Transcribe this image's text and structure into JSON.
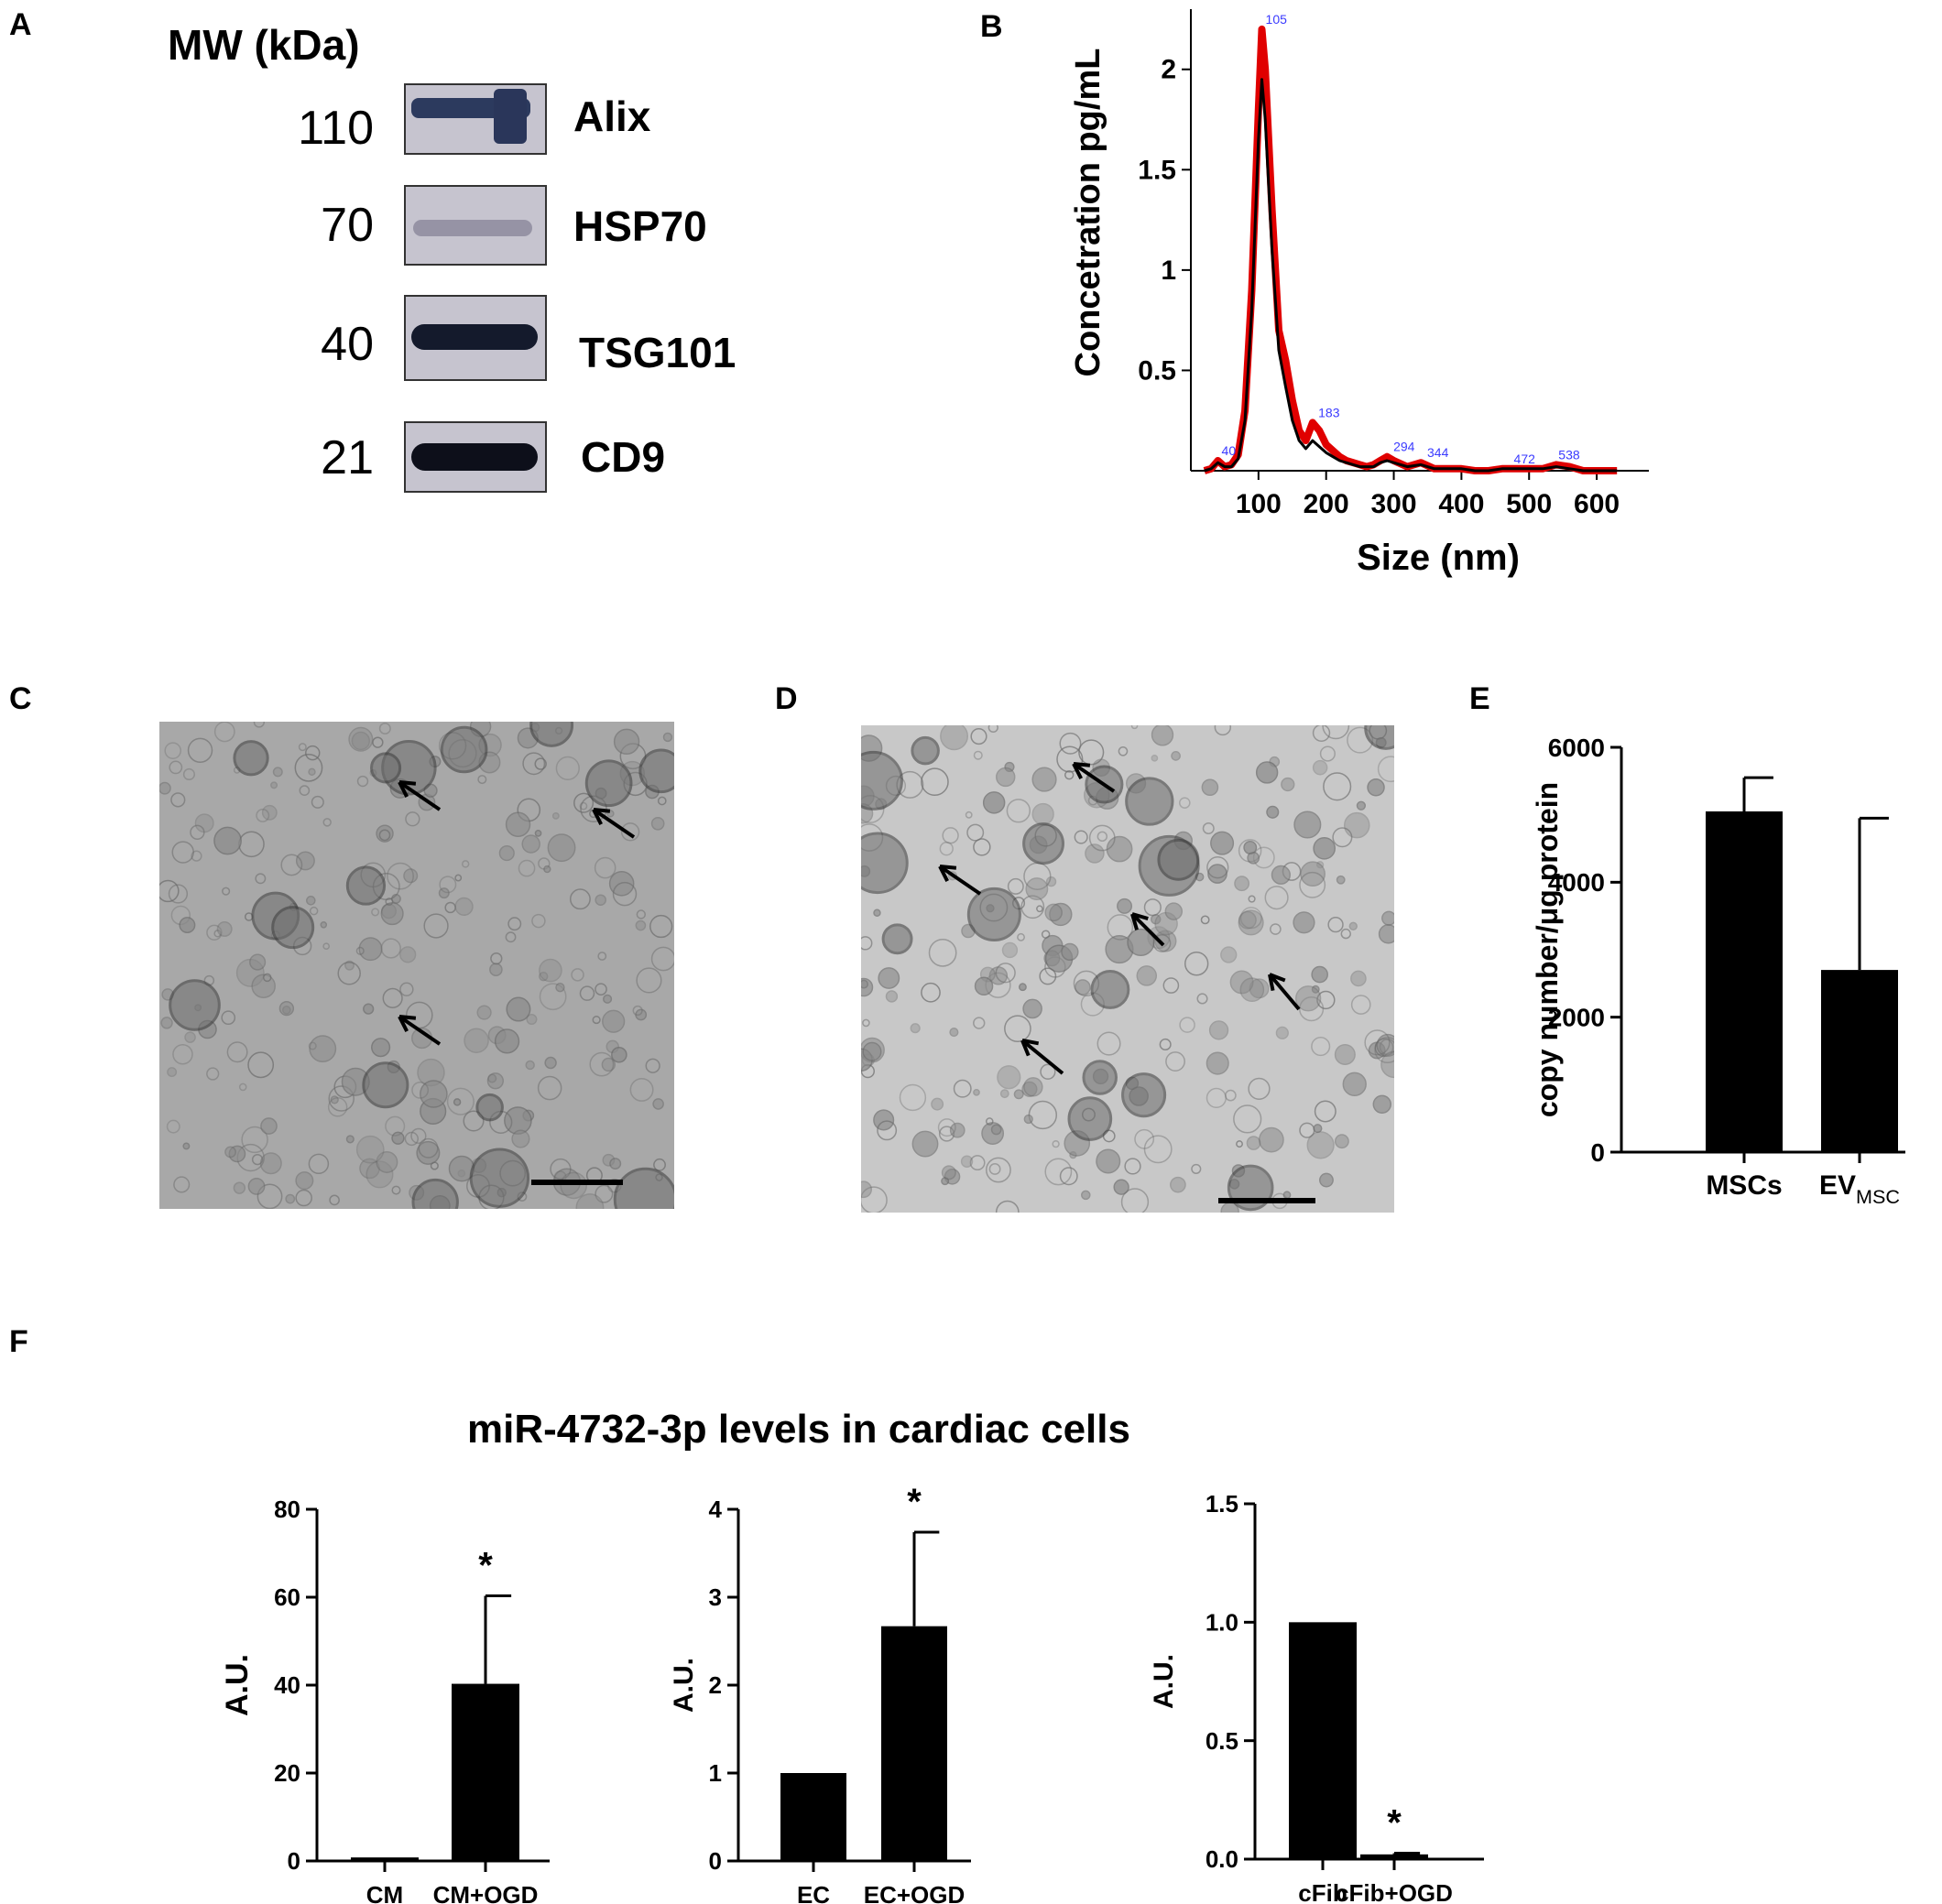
{
  "panels": {
    "A": {
      "letter": "A",
      "mw_header": "MW (kDa)",
      "bands": [
        {
          "mw": "110",
          "name": "Alix"
        },
        {
          "mw": "70",
          "name": "HSP70"
        },
        {
          "mw": "40",
          "name": "TSG101"
        },
        {
          "mw": "21",
          "name": "CD9"
        }
      ]
    },
    "B": {
      "letter": "B"
    },
    "C": {
      "letter": "C"
    },
    "D": {
      "letter": "D"
    },
    "E": {
      "letter": "E"
    },
    "F": {
      "letter": "F",
      "title": "miR-4732-3p levels in cardiac cells"
    }
  },
  "chart_data": [
    {
      "id": "B",
      "type": "line",
      "xlabel": "Size (nm)",
      "ylabel": "Concetration pg/mL",
      "xlim": [
        0,
        650
      ],
      "ylim": [
        0,
        2.3
      ],
      "x_ticks": [
        100,
        200,
        300,
        400,
        500,
        600
      ],
      "y_ticks": [
        0.5,
        1,
        1.5,
        2
      ],
      "peak_labels": [
        "40",
        "105",
        "183",
        "294",
        "344",
        "472",
        "538"
      ],
      "peak_x": [
        40,
        105,
        183,
        294,
        344,
        472,
        538
      ],
      "series": [
        {
          "color": "#e00000",
          "x": [
            20,
            30,
            40,
            50,
            60,
            70,
            80,
            90,
            100,
            105,
            110,
            120,
            130,
            140,
            150,
            160,
            170,
            180,
            190,
            200,
            210,
            220,
            230,
            240,
            250,
            260,
            270,
            280,
            290,
            300,
            320,
            340,
            360,
            380,
            400,
            420,
            440,
            460,
            480,
            500,
            520,
            540,
            560,
            580,
            600,
            630
          ],
          "y": [
            0,
            0.01,
            0.05,
            0.02,
            0.03,
            0.08,
            0.3,
            0.9,
            1.8,
            2.2,
            2.0,
            1.3,
            0.7,
            0.55,
            0.35,
            0.2,
            0.15,
            0.24,
            0.2,
            0.13,
            0.1,
            0.07,
            0.05,
            0.04,
            0.03,
            0.02,
            0.03,
            0.05,
            0.07,
            0.05,
            0.02,
            0.04,
            0.01,
            0.01,
            0.01,
            0.0,
            0.0,
            0.01,
            0.01,
            0.01,
            0.01,
            0.03,
            0.02,
            0.0,
            0.0,
            0.0
          ]
        },
        {
          "color": "#000000",
          "x": [
            20,
            30,
            40,
            50,
            60,
            70,
            80,
            90,
            100,
            105,
            110,
            120,
            130,
            140,
            150,
            160,
            170,
            180,
            190,
            200,
            210,
            220,
            230,
            240,
            250,
            260,
            270,
            280,
            290,
            300,
            320,
            340,
            360,
            380,
            400,
            420,
            440,
            460,
            480,
            500,
            520,
            540,
            560,
            580,
            600,
            630
          ],
          "y": [
            0,
            0.01,
            0.04,
            0.02,
            0.02,
            0.06,
            0.25,
            0.8,
            1.65,
            1.95,
            1.75,
            1.1,
            0.6,
            0.42,
            0.25,
            0.15,
            0.11,
            0.15,
            0.12,
            0.09,
            0.07,
            0.05,
            0.04,
            0.03,
            0.02,
            0.02,
            0.02,
            0.04,
            0.05,
            0.04,
            0.02,
            0.03,
            0.01,
            0.01,
            0.01,
            0.0,
            0.0,
            0.01,
            0.01,
            0.01,
            0.01,
            0.02,
            0.01,
            0.0,
            0.0,
            0.0
          ]
        }
      ]
    },
    {
      "id": "E",
      "type": "bar",
      "ylabel": "copy number/μg protein",
      "ylim": [
        0,
        6000
      ],
      "y_ticks": [
        0,
        2000,
        4000,
        6000
      ],
      "categories": [
        "MSCs",
        "EV"
      ],
      "category_subscripts": [
        "",
        "MSC"
      ],
      "values": [
        5050,
        2700
      ],
      "errors": [
        500,
        2250
      ]
    },
    {
      "id": "F1",
      "type": "bar",
      "ylabel": "A.U.",
      "ylim": [
        0,
        80
      ],
      "y_ticks": [
        0,
        20,
        40,
        60,
        80
      ],
      "categories": [
        "CM",
        "CM+OGD"
      ],
      "values": [
        0.8,
        40.3
      ],
      "errors": [
        0,
        20
      ],
      "significance": [
        "",
        "*"
      ]
    },
    {
      "id": "F2",
      "type": "bar",
      "ylabel": "A.U.",
      "ylim": [
        0,
        4
      ],
      "y_ticks": [
        0,
        1,
        2,
        3,
        4
      ],
      "categories": [
        "EC",
        "EC+OGD"
      ],
      "values": [
        1.0,
        2.67
      ],
      "errors": [
        0,
        1.07
      ],
      "significance": [
        "",
        "*"
      ]
    },
    {
      "id": "F3",
      "type": "bar",
      "ylabel": "A.U.",
      "ylim": [
        0,
        1.5
      ],
      "y_ticks": [
        "0.0",
        "0.5",
        "1.0",
        "1.5"
      ],
      "categories": [
        "cFib",
        "cFib+OGD"
      ],
      "values": [
        1.0,
        0.02
      ],
      "errors": [
        0,
        0.005
      ],
      "significance": [
        "",
        "*"
      ]
    }
  ],
  "micrographs": {
    "C": {
      "tone": "#a8a8a8",
      "arrows": 3
    },
    "D": {
      "tone": "#c8c8c8",
      "arrows": 5
    }
  }
}
